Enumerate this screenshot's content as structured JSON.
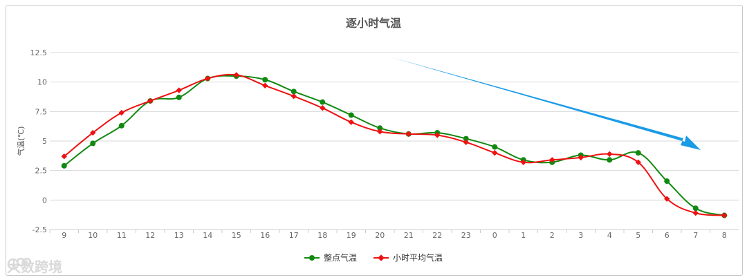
{
  "chart_data": {
    "type": "line",
    "title": "逐小时气温",
    "ylabel": "气温(℃)",
    "ylim": [
      -2.5,
      12.5
    ],
    "yticks": [
      "12.5",
      "10",
      "7.5",
      "5",
      "2.5",
      "0",
      "-2.5"
    ],
    "categories": [
      "9",
      "10",
      "11",
      "12",
      "13",
      "14",
      "15",
      "16",
      "17",
      "18",
      "19",
      "20",
      "21",
      "22",
      "23",
      "0",
      "1",
      "2",
      "3",
      "4",
      "5",
      "6",
      "7",
      "8"
    ],
    "series": [
      {
        "name": "整点气温",
        "color": "#118911",
        "marker": "circle",
        "values": [
          2.9,
          4.8,
          6.3,
          8.4,
          8.7,
          10.3,
          10.5,
          10.2,
          9.2,
          8.3,
          7.2,
          6.1,
          5.6,
          5.7,
          5.2,
          4.5,
          3.4,
          3.2,
          3.8,
          3.4,
          4.0,
          1.6,
          -0.7,
          -1.3
        ]
      },
      {
        "name": "小时平均气温",
        "color": "#ee1111",
        "marker": "diamond",
        "values": [
          3.7,
          5.7,
          7.4,
          8.4,
          9.3,
          10.3,
          10.6,
          9.7,
          8.8,
          7.8,
          6.6,
          5.8,
          5.6,
          5.5,
          4.9,
          4.0,
          3.2,
          3.4,
          3.6,
          3.9,
          3.2,
          0.1,
          -1.1,
          -1.3
        ]
      }
    ],
    "grid": true,
    "legend_position": "bottom",
    "annotation": {
      "type": "arrow",
      "color": "#1a9be8"
    }
  },
  "watermark": {
    "text": "大数跨境",
    "color": "#d9d9d9"
  }
}
